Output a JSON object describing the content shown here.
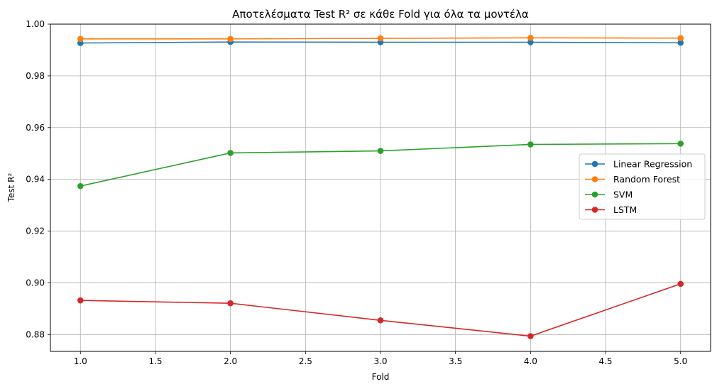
{
  "chart_data": {
    "type": "line",
    "title": "Αποτελέσματα Test R² σε κάθε Fold για όλα τα μοντέλα",
    "xlabel": "Fold",
    "ylabel": "Test R²",
    "x": [
      1,
      2,
      3,
      4,
      5
    ],
    "xlim": [
      0.8,
      5.2
    ],
    "ylim": [
      0.8735,
      1.0
    ],
    "xticks": [
      1.0,
      1.5,
      2.0,
      2.5,
      3.0,
      3.5,
      4.0,
      4.5,
      5.0
    ],
    "xtick_labels": [
      "1.0",
      "1.5",
      "2.0",
      "2.5",
      "3.0",
      "3.5",
      "4.0",
      "4.5",
      "5.0"
    ],
    "yticks": [
      0.88,
      0.9,
      0.92,
      0.94,
      0.96,
      0.98,
      1.0
    ],
    "ytick_labels": [
      "0.88",
      "0.90",
      "0.92",
      "0.94",
      "0.96",
      "0.98",
      "1.00"
    ],
    "grid": true,
    "legend_position": "center-right",
    "series": [
      {
        "name": "Linear Regression",
        "color": "#1f77b4",
        "values": [
          0.9927,
          0.9931,
          0.993,
          0.993,
          0.9928
        ]
      },
      {
        "name": "Random Forest",
        "color": "#ff7f0e",
        "values": [
          0.9943,
          0.9943,
          0.9945,
          0.9947,
          0.9946
        ]
      },
      {
        "name": "SVM",
        "color": "#2ca02c",
        "values": [
          0.9374,
          0.9502,
          0.951,
          0.9535,
          0.9538
        ]
      },
      {
        "name": "LSTM",
        "color": "#d62728",
        "values": [
          0.8932,
          0.8921,
          0.8855,
          0.8794,
          0.8996
        ]
      }
    ]
  }
}
